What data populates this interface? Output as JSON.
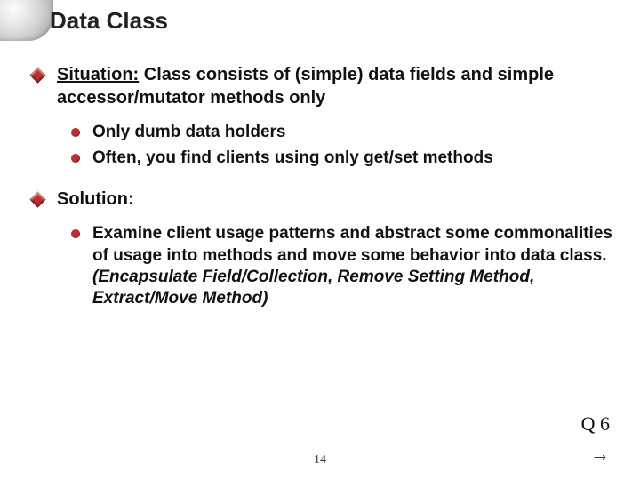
{
  "title": "Data Class",
  "situation": {
    "label": "Situation:",
    "text": " Class consists of (simple) data fields and simple accessor/mutator methods only",
    "sub": [
      "Only dumb data holders",
      "Often, you find clients using only get/set methods"
    ]
  },
  "solution": {
    "label": "Solution:",
    "plain": "Examine client usage patterns and abstract some commonalities of usage into methods and move some behavior into data class.",
    "italic": "(Encapsulate Field/Collection, Remove Setting Method, Extract/Move Method)"
  },
  "footer": {
    "q": "Q 6",
    "page": "14",
    "arrow": "→"
  },
  "colors": {
    "accent": "#b93030",
    "text": "#111111",
    "bg": "#ffffff"
  }
}
